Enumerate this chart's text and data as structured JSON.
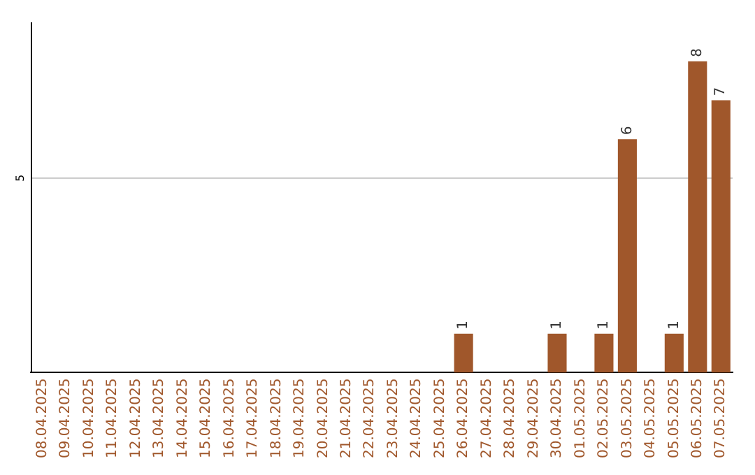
{
  "chart_data": {
    "type": "bar",
    "categories": [
      "08.04.2025",
      "09.04.2025",
      "10.04.2025",
      "11.04.2025",
      "12.04.2025",
      "13.04.2025",
      "14.04.2025",
      "15.04.2025",
      "16.04.2025",
      "17.04.2025",
      "18.04.2025",
      "19.04.2025",
      "20.04.2025",
      "21.04.2025",
      "22.04.2025",
      "23.04.2025",
      "24.04.2025",
      "25.04.2025",
      "26.04.2025",
      "27.04.2025",
      "28.04.2025",
      "29.04.2025",
      "30.04.2025",
      "01.05.2025",
      "02.05.2025",
      "03.05.2025",
      "04.05.2025",
      "05.05.2025",
      "06.05.2025",
      "07.05.2025"
    ],
    "values": [
      null,
      null,
      null,
      null,
      null,
      null,
      null,
      null,
      null,
      null,
      null,
      null,
      null,
      null,
      null,
      null,
      null,
      null,
      1,
      null,
      null,
      null,
      1,
      null,
      1,
      6,
      null,
      1,
      8,
      7
    ],
    "data_labels": true,
    "color": "#a0572b",
    "ref_lines": [
      {
        "axis": "y",
        "value": 5,
        "label": "5",
        "color": "#cccccc"
      }
    ]
  }
}
